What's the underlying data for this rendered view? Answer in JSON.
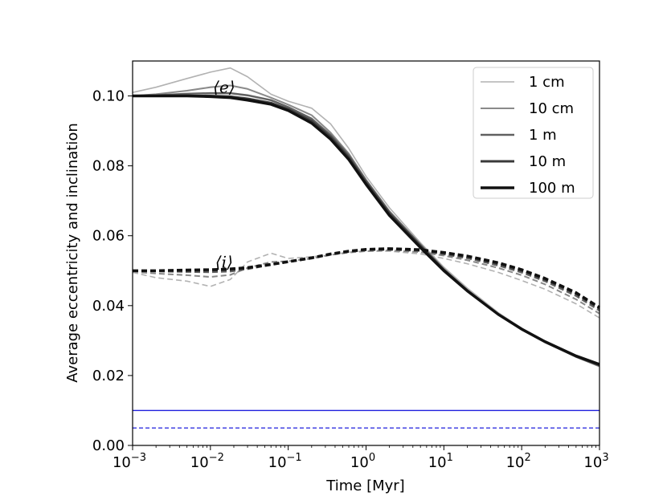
{
  "chart_data": {
    "type": "line",
    "title": "",
    "xlabel": "Time [Myr]",
    "ylabel": "Average eccentricity and inclination",
    "xscale": "log",
    "xlim": [
      0.001,
      1000
    ],
    "ylim": [
      0,
      0.11
    ],
    "grid": false,
    "legend_position": "top-right",
    "x_ticks": [
      {
        "value": 0.001,
        "base": "10",
        "exp": "−3"
      },
      {
        "value": 0.01,
        "base": "10",
        "exp": "−2"
      },
      {
        "value": 0.1,
        "base": "10",
        "exp": "−1"
      },
      {
        "value": 1,
        "base": "10",
        "exp": "0"
      },
      {
        "value": 10,
        "base": "10",
        "exp": "1"
      },
      {
        "value": 100,
        "base": "10",
        "exp": "2"
      },
      {
        "value": 1000,
        "base": "10",
        "exp": "3"
      }
    ],
    "y_ticks": [
      {
        "value": 0.0,
        "label": "0.00"
      },
      {
        "value": 0.02,
        "label": "0.02"
      },
      {
        "value": 0.04,
        "label": "0.04"
      },
      {
        "value": 0.06,
        "label": "0.06"
      },
      {
        "value": 0.08,
        "label": "0.08"
      },
      {
        "value": 0.1,
        "label": "0.10"
      }
    ],
    "x": [
      0.001,
      0.002,
      0.005,
      0.01,
      0.018,
      0.03,
      0.06,
      0.1,
      0.2,
      0.35,
      0.6,
      1,
      2,
      5,
      10,
      20,
      50,
      100,
      200,
      500,
      1000
    ],
    "series": [
      {
        "name": "1 cm",
        "color": "#b2b2b2",
        "e": [
          0.101,
          0.1025,
          0.105,
          0.1068,
          0.108,
          0.1055,
          0.1005,
          0.0985,
          0.0965,
          0.092,
          0.085,
          0.077,
          0.068,
          0.058,
          0.051,
          0.045,
          0.038,
          0.0335,
          0.0298,
          0.0256,
          0.0228
        ],
        "i": [
          0.0495,
          0.048,
          0.047,
          0.0455,
          0.0475,
          0.0525,
          0.055,
          0.0535,
          0.054,
          0.0545,
          0.0553,
          0.0556,
          0.0556,
          0.0548,
          0.0535,
          0.052,
          0.0495,
          0.0472,
          0.0447,
          0.0405,
          0.0365
        ]
      },
      {
        "name": "10 cm",
        "color": "#8a8a8a",
        "e": [
          0.1,
          0.1005,
          0.1015,
          0.1025,
          0.103,
          0.102,
          0.0995,
          0.0975,
          0.0945,
          0.0895,
          0.0835,
          0.076,
          0.067,
          0.0575,
          0.0505,
          0.0445,
          0.0375,
          0.0332,
          0.0295,
          0.0253,
          0.0226
        ],
        "i": [
          0.0497,
          0.0492,
          0.0487,
          0.0482,
          0.0488,
          0.0508,
          0.0525,
          0.0527,
          0.0535,
          0.0545,
          0.0552,
          0.0556,
          0.0558,
          0.0553,
          0.0543,
          0.053,
          0.0508,
          0.0487,
          0.0461,
          0.0418,
          0.0377
        ]
      },
      {
        "name": "1 m",
        "color": "#606060",
        "e": [
          0.1,
          0.1002,
          0.1006,
          0.1008,
          0.1008,
          0.1002,
          0.0988,
          0.0968,
          0.0935,
          0.0888,
          0.083,
          0.0758,
          0.0668,
          0.0574,
          0.0504,
          0.0444,
          0.0375,
          0.0332,
          0.0296,
          0.0254,
          0.0228
        ],
        "i": [
          0.0499,
          0.0498,
          0.0497,
          0.0496,
          0.0498,
          0.0505,
          0.0517,
          0.0525,
          0.0535,
          0.0546,
          0.0554,
          0.0559,
          0.056,
          0.0557,
          0.0547,
          0.0536,
          0.0515,
          0.0495,
          0.047,
          0.0428,
          0.0386
        ]
      },
      {
        "name": "10 m",
        "color": "#3a3a3a",
        "e": [
          0.1,
          0.1,
          0.1,
          0.1,
          0.0998,
          0.0992,
          0.098,
          0.0962,
          0.0928,
          0.0882,
          0.0824,
          0.0752,
          0.0663,
          0.057,
          0.0502,
          0.0443,
          0.0375,
          0.0332,
          0.0296,
          0.0255,
          0.023
        ],
        "i": [
          0.05,
          0.05,
          0.05,
          0.0501,
          0.0503,
          0.0507,
          0.0517,
          0.0525,
          0.0536,
          0.0547,
          0.0555,
          0.056,
          0.0562,
          0.0559,
          0.055,
          0.054,
          0.052,
          0.05,
          0.0475,
          0.0434,
          0.0392
        ]
      },
      {
        "name": "100 m",
        "color": "#111111",
        "e": [
          0.1,
          0.1,
          0.1,
          0.0998,
          0.0995,
          0.0988,
          0.0976,
          0.0958,
          0.0922,
          0.0876,
          0.0818,
          0.0747,
          0.0658,
          0.0566,
          0.05,
          0.0442,
          0.0375,
          0.0333,
          0.0297,
          0.0256,
          0.0232
        ],
        "i": [
          0.05,
          0.05,
          0.0502,
          0.0503,
          0.0505,
          0.0509,
          0.0518,
          0.0526,
          0.0537,
          0.0548,
          0.0556,
          0.0561,
          0.0563,
          0.056,
          0.0552,
          0.0542,
          0.0523,
          0.0503,
          0.0478,
          0.0437,
          0.0395
        ]
      }
    ],
    "reference_lines": [
      {
        "name": "blue-solid-line",
        "y": 0.01,
        "color": "#1f1fdd",
        "style": "solid"
      },
      {
        "name": "blue-dashed-line",
        "y": 0.005,
        "color": "#1f1fdd",
        "style": "dashed"
      }
    ],
    "annotations": [
      {
        "name": "annotation-e",
        "text": "⟨e⟩",
        "x": 0.015,
        "y": 0.1025
      },
      {
        "name": "annotation-i",
        "text": "⟨i⟩",
        "x": 0.015,
        "y": 0.0525
      }
    ]
  }
}
